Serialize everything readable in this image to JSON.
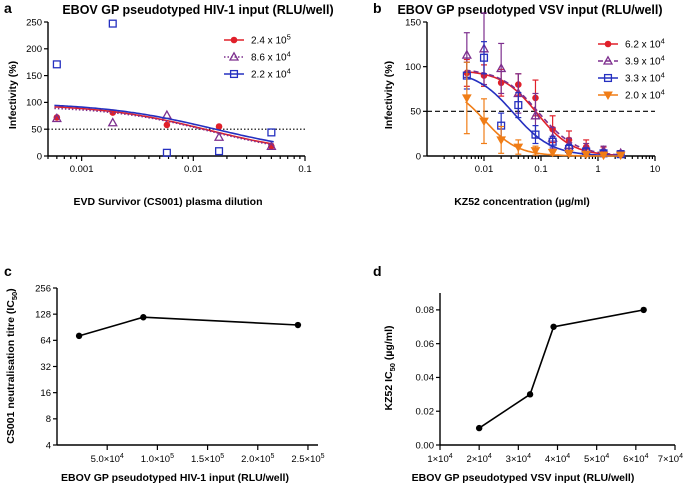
{
  "panels": {
    "a": "a",
    "b": "b",
    "c": "c",
    "d": "d"
  },
  "chart_data": [
    {
      "id": "a",
      "type": "scatter",
      "title": "EBOV GP pseudotyped HIV-1 input (RLU/well)",
      "xlabel": "EVD Survivor (CS001) plasma dilution",
      "ylabel": "Infectivity (%)",
      "xscale": "log",
      "xlim": [
        0.0005,
        0.1
      ],
      "ylim": [
        0,
        250
      ],
      "xticks": [
        0.001,
        0.01,
        0.1
      ],
      "xtick_labels": [
        "0.001",
        "0.01",
        "0.1"
      ],
      "yticks": [
        0,
        50,
        100,
        150,
        200,
        250
      ],
      "ytick_labels": [
        "0",
        "50",
        "100",
        "150",
        "200",
        "250"
      ],
      "reference_line": 50,
      "legend_position": "top-right",
      "series": [
        {
          "name_base": "2.4 x 10",
          "name_exp": "5",
          "color": "#e0202a",
          "marker": "circle",
          "line": "solid",
          "x": [
            0.0006,
            0.0019,
            0.0058,
            0.017,
            0.05
          ],
          "y": [
            72,
            81,
            58,
            55,
            18
          ],
          "fit": {
            "top": 97,
            "bottom": 0,
            "ic50": 0.0135,
            "hill": 0.9
          }
        },
        {
          "name_base": "8.6 x 10",
          "name_exp": "4",
          "color": "#7d2f8e",
          "marker": "triangle",
          "line": "dotted",
          "x": [
            0.0006,
            0.0019,
            0.0058,
            0.017,
            0.05
          ],
          "y": [
            70,
            62,
            76,
            35,
            18
          ],
          "fit": {
            "top": 93,
            "bottom": 0,
            "ic50": 0.014,
            "hill": 0.95
          }
        },
        {
          "name_base": "2.2 x 10",
          "name_exp": "4",
          "color": "#2530c0",
          "marker": "square",
          "line": "solid",
          "x": [
            0.0006,
            0.0019,
            0.0058,
            0.017,
            0.05
          ],
          "y": [
            171,
            247,
            6,
            9,
            44
          ],
          "fit": {
            "top": 100,
            "bottom": 0,
            "ic50": 0.0158,
            "hill": 0.85
          }
        }
      ]
    },
    {
      "id": "b",
      "type": "scatter",
      "title": "EBOV GP pseudotyped VSV input (RLU/well)",
      "xlabel": "KZ52 concentration (µg/ml)",
      "ylabel": "Infectivity (%)",
      "xscale": "log",
      "xlim": [
        0.001,
        10
      ],
      "ylim": [
        0,
        150
      ],
      "xticks": [
        0.01,
        0.1,
        1,
        10
      ],
      "xtick_labels": [
        "0.01",
        "0.1",
        "1",
        "10"
      ],
      "yticks": [
        0,
        50,
        100,
        150
      ],
      "ytick_labels": [
        "0",
        "50",
        "100",
        "150"
      ],
      "reference_line": 50,
      "legend_position": "top-right",
      "series": [
        {
          "name_base": "6.2 x 10",
          "name_exp": "4",
          "color": "#e0202a",
          "marker": "circle",
          "line": "solid",
          "x": [
            0.005,
            0.01,
            0.02,
            0.04,
            0.08,
            0.16,
            0.31,
            0.62,
            1.25,
            2.5
          ],
          "y": [
            93,
            90,
            82,
            80,
            65,
            30,
            18,
            10,
            5,
            3
          ],
          "err": [
            15,
            12,
            15,
            12,
            20,
            15,
            10,
            8,
            5,
            3
          ],
          "fit": {
            "top": 96,
            "bottom": 0,
            "ic50": 0.085,
            "hill": 1.4
          }
        },
        {
          "name_base": "3.9 x 10",
          "name_exp": "4",
          "color": "#7d2f8e",
          "marker": "triangle",
          "line": "dashed",
          "x": [
            0.005,
            0.01,
            0.02,
            0.04,
            0.08,
            0.16,
            0.31,
            0.62,
            1.25,
            2.5
          ],
          "y": [
            113,
            120,
            98,
            70,
            45,
            20,
            12,
            8,
            6,
            3
          ],
          "err": [
            25,
            40,
            28,
            22,
            25,
            12,
            8,
            6,
            5,
            3
          ],
          "fit": {
            "top": 98,
            "bottom": 0,
            "ic50": 0.09,
            "hill": 1.3
          }
        },
        {
          "name_base": "3.3 x 10",
          "name_exp": "4",
          "color": "#2530c0",
          "marker": "square",
          "line": "solid",
          "x": [
            0.005,
            0.01,
            0.02,
            0.04,
            0.08,
            0.16,
            0.31,
            0.62,
            1.25,
            2.5
          ],
          "y": [
            90,
            110,
            34,
            57,
            24,
            16,
            8,
            5,
            3,
            2
          ],
          "err": [
            15,
            18,
            14,
            14,
            10,
            6,
            5,
            4,
            3,
            2
          ],
          "fit": {
            "top": 96,
            "bottom": 0,
            "ic50": 0.033,
            "hill": 1.3
          }
        },
        {
          "name_base": "2.0 x 10",
          "name_exp": "4",
          "color": "#f07d17",
          "marker": "triangle-down",
          "line": "solid",
          "x": [
            0.005,
            0.01,
            0.02,
            0.04,
            0.08,
            0.16,
            0.31,
            0.62,
            1.25,
            2.5
          ],
          "y": [
            65,
            39,
            18,
            10,
            6,
            4,
            3,
            2,
            1,
            1
          ],
          "err": [
            40,
            25,
            15,
            8,
            5,
            3,
            2,
            2,
            1,
            1
          ],
          "fit": {
            "top": 80,
            "bottom": 0,
            "ic50": 0.0102,
            "hill": 1.5
          }
        }
      ]
    },
    {
      "id": "c",
      "type": "line",
      "xlabel": "EBOV GP pseudotyped HIV-1 input (RLU/well)",
      "ylabel_base": "CS001 neutralisation titre (IC",
      "ylabel_sub": "50",
      "ylabel_end": ")",
      "yscale": "log2",
      "xlim": [
        0,
        260000
      ],
      "ylim": [
        4,
        256
      ],
      "xticks": [
        50000,
        100000,
        150000,
        200000,
        250000
      ],
      "xtick_labels": [
        {
          "base": "5.0×10",
          "exp": "4"
        },
        {
          "base": "1.0×10",
          "exp": "5"
        },
        {
          "base": "1.5×10",
          "exp": "5"
        },
        {
          "base": "2.0×10",
          "exp": "5"
        },
        {
          "base": "2.5×10",
          "exp": "5"
        }
      ],
      "yticks": [
        4,
        8,
        16,
        32,
        64,
        128,
        256
      ],
      "ytick_labels": [
        "4",
        "8",
        "16",
        "32",
        "64",
        "128",
        "256"
      ],
      "x": [
        22000,
        86000,
        240000
      ],
      "y": [
        72,
        118,
        96
      ]
    },
    {
      "id": "d",
      "type": "line",
      "xlabel": "EBOV GP pseudotyped VSV input (RLU/well)",
      "ylabel_base": "KZ52 IC",
      "ylabel_sub": "50",
      "ylabel_end": " (µg/ml)",
      "xlim": [
        10000,
        70000
      ],
      "ylim": [
        0,
        0.09
      ],
      "xticks": [
        10000,
        20000,
        30000,
        40000,
        50000,
        60000,
        70000
      ],
      "xtick_labels": [
        {
          "base": "1×10",
          "exp": "4"
        },
        {
          "base": "2×10",
          "exp": "4"
        },
        {
          "base": "3×10",
          "exp": "4"
        },
        {
          "base": "4×10",
          "exp": "4"
        },
        {
          "base": "5×10",
          "exp": "4"
        },
        {
          "base": "6×10",
          "exp": "4"
        },
        {
          "base": "7×10",
          "exp": "4"
        }
      ],
      "yticks": [
        0,
        0.02,
        0.04,
        0.06,
        0.08
      ],
      "ytick_labels": [
        "0.00",
        "0.02",
        "0.04",
        "0.06",
        "0.08"
      ],
      "x": [
        20000,
        33000,
        39000,
        62000
      ],
      "y": [
        0.01,
        0.03,
        0.07,
        0.08
      ]
    }
  ]
}
